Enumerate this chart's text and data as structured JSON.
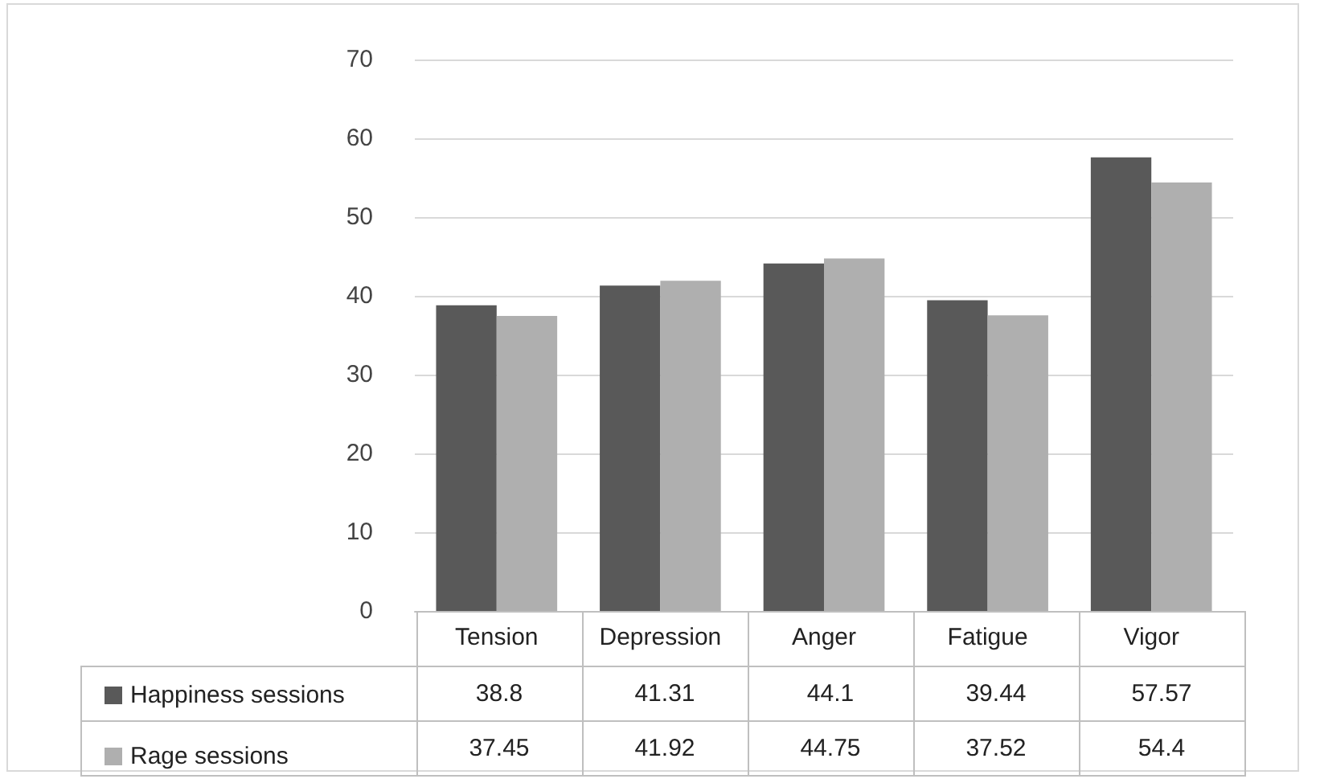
{
  "chart_data": {
    "type": "bar",
    "categories": [
      "Tension",
      "Depression",
      "Anger",
      "Fatigue",
      "Vigor"
    ],
    "series": [
      {
        "name": "Happiness sessions",
        "color": "#595959",
        "values": [
          38.8,
          41.31,
          44.1,
          39.44,
          57.57
        ]
      },
      {
        "name": "Rage sessions",
        "color": "#afafaf",
        "values": [
          37.45,
          41.92,
          44.75,
          37.52,
          54.4
        ]
      }
    ],
    "ylim": [
      0,
      70
    ],
    "yticks": [
      0,
      10,
      20,
      30,
      40,
      50,
      60,
      70
    ],
    "grid": "y",
    "legend": "bottom left",
    "data_labels": true
  }
}
